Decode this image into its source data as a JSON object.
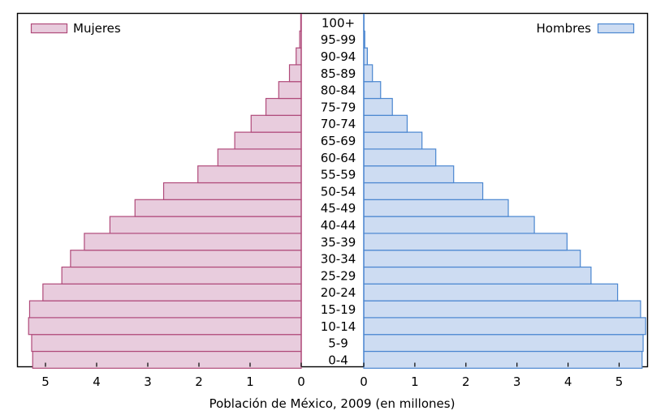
{
  "chart_data": {
    "type": "bar",
    "orientation": "horizontal",
    "layout": "population-pyramid",
    "xlabel": "Población de México, 2009 (en millones)",
    "xlim_left": [
      0,
      5.5
    ],
    "xlim_right": [
      0,
      5.5
    ],
    "x_ticks": [
      0,
      1,
      2,
      3,
      4,
      5
    ],
    "x_tick_labels": [
      "0",
      "1",
      "2",
      "3",
      "4",
      "5"
    ],
    "grid": false,
    "categories": [
      "0-4",
      "5-9",
      "10-14",
      "15-19",
      "20-24",
      "25-29",
      "30-34",
      "35-39",
      "40-44",
      "45-49",
      "50-54",
      "55-59",
      "60-64",
      "65-69",
      "70-74",
      "75-79",
      "80-84",
      "85-89",
      "90-94",
      "95-99",
      "100+"
    ],
    "series": [
      {
        "name": "Mujeres",
        "side": "left",
        "legend_position": "top-left",
        "fill": "#e8ccdd",
        "stroke": "#b04a7a",
        "values": [
          5.25,
          5.27,
          5.33,
          5.31,
          5.05,
          4.68,
          4.51,
          4.24,
          3.74,
          3.25,
          2.69,
          2.02,
          1.63,
          1.3,
          0.98,
          0.69,
          0.44,
          0.23,
          0.1,
          0.03,
          0.01
        ]
      },
      {
        "name": "Hombres",
        "side": "right",
        "legend_position": "top-right",
        "fill": "#cddcf2",
        "stroke": "#4a86d0",
        "values": [
          5.45,
          5.47,
          5.52,
          5.42,
          4.97,
          4.45,
          4.24,
          3.98,
          3.34,
          2.83,
          2.33,
          1.76,
          1.41,
          1.14,
          0.85,
          0.56,
          0.33,
          0.17,
          0.07,
          0.02,
          0.005
        ]
      }
    ]
  }
}
